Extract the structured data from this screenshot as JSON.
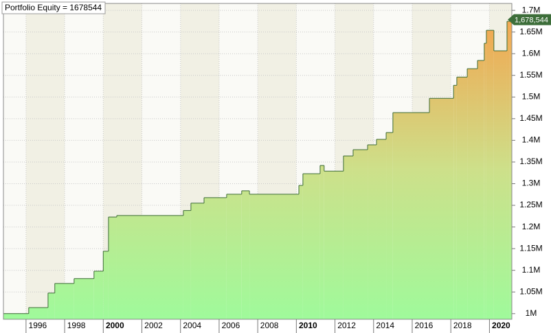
{
  "chart_data": {
    "type": "step-area",
    "title": "Portfolio Equity = 1678544",
    "x": [
      1994.83,
      1996.14,
      1997.14,
      1997.49,
      1998.49,
      1999.52,
      2000.0,
      2000.27,
      2000.7,
      2004.15,
      2004.54,
      2005.22,
      2006.39,
      2007.17,
      2007.57,
      2010.13,
      2010.34,
      2011.23,
      2011.44,
      2012.44,
      2012.94,
      2013.69,
      2014.15,
      2014.65,
      2015.0,
      2016.89,
      2018.14,
      2018.31,
      2018.85,
      2019.38,
      2019.73,
      2019.84,
      2020.23,
      2020.91,
      2021.05
    ],
    "values": [
      1000000,
      1014000,
      1047500,
      1069700,
      1080800,
      1098000,
      1144000,
      1223000,
      1226500,
      1238000,
      1255000,
      1267700,
      1275600,
      1283500,
      1275600,
      1296000,
      1323000,
      1342000,
      1329000,
      1364000,
      1378500,
      1389600,
      1402300,
      1418000,
      1464000,
      1497000,
      1527000,
      1546000,
      1565400,
      1584400,
      1624000,
      1654000,
      1606600,
      1674700,
      1678544
    ],
    "end_label": {
      "value": 1678544,
      "label": "1,678,544"
    },
    "line_color": "#3b6b34",
    "fill_bottom": "#9ffa9b",
    "fill_mid": "#cde08a",
    "fill_top": "#f2a650",
    "xlim": [
      1994.83,
      2021.16
    ],
    "xticks": [
      1996,
      1998,
      2000,
      2002,
      2004,
      2006,
      2008,
      2010,
      2012,
      2014,
      2016,
      2018,
      2020
    ],
    "ylim": [
      987000,
      1716000
    ],
    "yticks": [
      {
        "value": 1000000,
        "label": "1M"
      },
      {
        "value": 1050000,
        "label": "1.05M"
      },
      {
        "value": 1100000,
        "label": "1.1M"
      },
      {
        "value": 1150000,
        "label": "1.15M"
      },
      {
        "value": 1200000,
        "label": "1.2M"
      },
      {
        "value": 1250000,
        "label": "1.25M"
      },
      {
        "value": 1300000,
        "label": "1.3M"
      },
      {
        "value": 1350000,
        "label": "1.35M"
      },
      {
        "value": 1400000,
        "label": "1.4M"
      },
      {
        "value": 1450000,
        "label": "1.45M"
      },
      {
        "value": 1500000,
        "label": "1.5M"
      },
      {
        "value": 1550000,
        "label": "1.55M"
      },
      {
        "value": 1600000,
        "label": "1.6M"
      },
      {
        "value": 1650000,
        "label": "1.65M"
      },
      {
        "value": 1700000,
        "label": "1.7M"
      }
    ],
    "grid": true
  }
}
